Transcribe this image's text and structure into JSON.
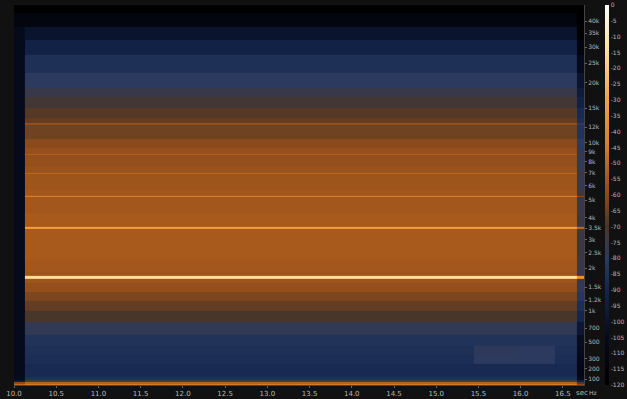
{
  "chart_data": {
    "type": "heatmap",
    "x_label": "sec",
    "y_label": "Hz",
    "x": [
      10.05,
      10.2,
      10.7,
      11.2,
      11.7,
      12.2,
      12.7,
      13.2,
      13.7,
      14.2,
      14.7,
      15.2,
      15.7,
      16.2,
      16.6,
      16.72
    ],
    "y": [
      50,
      70,
      85,
      100,
      150,
      200,
      300,
      400,
      500,
      700,
      900,
      1100,
      1300,
      1500,
      1690,
      1750,
      1810,
      2000,
      2500,
      3000,
      3400,
      3500,
      3600,
      4000,
      4500,
      5150,
      5250,
      5350,
      6000,
      6900,
      7000,
      7100,
      8000,
      8600,
      8750,
      8900,
      10000,
      11000,
      12300,
      12500,
      12700,
      14000,
      16000,
      18000,
      20000,
      25000,
      30000,
      35000,
      40000,
      48000
    ],
    "cells": [
      [
        -50,
        -45,
        -45,
        -45,
        -45,
        -45,
        -45,
        -45,
        -45,
        -45,
        -45,
        -45,
        -45,
        -45,
        -45,
        -60
      ],
      [
        -60,
        -52,
        -52,
        -52,
        -52,
        -52,
        -52,
        -52,
        -52,
        -52,
        -52,
        -52,
        -52,
        -52,
        -52,
        -70
      ],
      [
        -100,
        -75,
        -75,
        -75,
        -75,
        -75,
        -75,
        -75,
        -75,
        -75,
        -75,
        -75,
        -75,
        -75,
        -75,
        -95
      ],
      [
        -105,
        -85,
        -85,
        -85,
        -85,
        -85,
        -85,
        -85,
        -85,
        -85,
        -85,
        -85,
        -85,
        -85,
        -85,
        -105
      ],
      [
        -105,
        -88,
        -88,
        -88,
        -88,
        -88,
        -88,
        -88,
        -88,
        -88,
        -88,
        -88,
        -88,
        -88,
        -88,
        -108
      ],
      [
        -105,
        -88,
        -88,
        -88,
        -88,
        -88,
        -88,
        -88,
        -88,
        -88,
        -88,
        -88,
        -88,
        -88,
        -88,
        -108
      ],
      [
        -105,
        -86,
        -86,
        -86,
        -86,
        -86,
        -86,
        -86,
        -86,
        -86,
        -86,
        -86,
        -80,
        -80,
        -86,
        -106
      ],
      [
        -105,
        -85,
        -85,
        -85,
        -85,
        -85,
        -85,
        -85,
        -85,
        -85,
        -85,
        -85,
        -79,
        -80,
        -85,
        -105
      ],
      [
        -105,
        -84,
        -84,
        -84,
        -84,
        -84,
        -84,
        -84,
        -84,
        -84,
        -84,
        -84,
        -84,
        -84,
        -84,
        -104
      ],
      [
        -105,
        -78,
        -78,
        -78,
        -78,
        -78,
        -78,
        -78,
        -78,
        -78,
        -78,
        -78,
        -78,
        -78,
        -78,
        -98
      ],
      [
        -105,
        -70,
        -70,
        -70,
        -70,
        -70,
        -70,
        -70,
        -70,
        -70,
        -70,
        -70,
        -70,
        -70,
        -70,
        -90
      ],
      [
        -105,
        -66,
        -66,
        -66,
        -66,
        -66,
        -66,
        -66,
        -66,
        -66,
        -66,
        -66,
        -66,
        -66,
        -66,
        -86
      ],
      [
        -105,
        -62,
        -62,
        -62,
        -62,
        -62,
        -62,
        -62,
        -62,
        -62,
        -62,
        -62,
        -62,
        -62,
        -62,
        -82
      ],
      [
        -105,
        -58,
        -58,
        -58,
        -58,
        -58,
        -58,
        -58,
        -58,
        -58,
        -58,
        -58,
        -58,
        -58,
        -58,
        -78
      ],
      [
        -105,
        -56,
        -56,
        -56,
        -56,
        -56,
        -56,
        -56,
        -56,
        -56,
        -56,
        -56,
        -56,
        -56,
        -56,
        -76
      ],
      [
        -105,
        -15,
        -15,
        -15,
        -15,
        -15,
        -15,
        -15,
        -15,
        -15,
        -15,
        -15,
        -15,
        -15,
        -15,
        -35
      ],
      [
        -105,
        -56,
        -56,
        -56,
        -56,
        -56,
        -56,
        -56,
        -56,
        -56,
        -56,
        -56,
        -56,
        -56,
        -56,
        -76
      ],
      [
        -105,
        -55,
        -55,
        -55,
        -55,
        -55,
        -55,
        -55,
        -55,
        -55,
        -55,
        -55,
        -55,
        -55,
        -55,
        -75
      ],
      [
        -105,
        -54,
        -54,
        -54,
        -54,
        -54,
        -54,
        -54,
        -54,
        -54,
        -54,
        -54,
        -54,
        -54,
        -54,
        -74
      ],
      [
        -105,
        -54,
        -54,
        -54,
        -54,
        -54,
        -54,
        -54,
        -54,
        -54,
        -54,
        -54,
        -54,
        -54,
        -54,
        -74
      ],
      [
        -105,
        -54,
        -54,
        -54,
        -54,
        -54,
        -54,
        -54,
        -54,
        -54,
        -54,
        -54,
        -54,
        -54,
        -54,
        -74
      ],
      [
        -105,
        -30,
        -30,
        -30,
        -30,
        -30,
        -30,
        -30,
        -30,
        -30,
        -30,
        -30,
        -30,
        -30,
        -30,
        -50
      ],
      [
        -105,
        -54,
        -54,
        -54,
        -54,
        -54,
        -54,
        -54,
        -54,
        -54,
        -54,
        -54,
        -54,
        -54,
        -54,
        -74
      ],
      [
        -105,
        -54,
        -54,
        -54,
        -54,
        -54,
        -54,
        -54,
        -54,
        -54,
        -54,
        -54,
        -54,
        -54,
        -54,
        -74
      ],
      [
        -105,
        -55,
        -55,
        -55,
        -55,
        -55,
        -55,
        -55,
        -55,
        -55,
        -55,
        -55,
        -55,
        -55,
        -55,
        -75
      ],
      [
        -105,
        -55,
        -55,
        -55,
        -55,
        -55,
        -55,
        -55,
        -55,
        -55,
        -55,
        -55,
        -55,
        -55,
        -55,
        -75
      ],
      [
        -105,
        -40,
        -40,
        -40,
        -40,
        -40,
        -40,
        -40,
        -40,
        -40,
        -40,
        -40,
        -40,
        -40,
        -40,
        -60
      ],
      [
        -105,
        -55,
        -55,
        -55,
        -55,
        -55,
        -55,
        -55,
        -55,
        -55,
        -55,
        -55,
        -55,
        -55,
        -55,
        -75
      ],
      [
        -105,
        -56,
        -56,
        -56,
        -56,
        -56,
        -56,
        -56,
        -56,
        -56,
        -56,
        -56,
        -56,
        -56,
        -56,
        -76
      ],
      [
        -105,
        -56,
        -56,
        -56,
        -56,
        -56,
        -56,
        -56,
        -56,
        -56,
        -56,
        -56,
        -56,
        -56,
        -56,
        -76
      ],
      [
        -105,
        -50,
        -50,
        -50,
        -50,
        -50,
        -50,
        -50,
        -50,
        -50,
        -50,
        -50,
        -50,
        -50,
        -50,
        -70
      ],
      [
        -105,
        -57,
        -57,
        -57,
        -57,
        -57,
        -57,
        -57,
        -57,
        -57,
        -57,
        -57,
        -57,
        -57,
        -57,
        -77
      ],
      [
        -105,
        -58,
        -58,
        -58,
        -58,
        -58,
        -58,
        -58,
        -58,
        -58,
        -58,
        -58,
        -58,
        -58,
        -58,
        -78
      ],
      [
        -105,
        -58,
        -58,
        -58,
        -58,
        -58,
        -58,
        -58,
        -58,
        -58,
        -58,
        -58,
        -58,
        -58,
        -58,
        -78
      ],
      [
        -105,
        -52,
        -52,
        -52,
        -52,
        -52,
        -52,
        -52,
        -52,
        -52,
        -52,
        -52,
        -52,
        -52,
        -52,
        -72
      ],
      [
        -105,
        -58,
        -58,
        -58,
        -58,
        -58,
        -58,
        -58,
        -58,
        -58,
        -58,
        -58,
        -58,
        -58,
        -58,
        -78
      ],
      [
        -105,
        -60,
        -60,
        -60,
        -60,
        -60,
        -60,
        -60,
        -60,
        -60,
        -60,
        -60,
        -60,
        -60,
        -60,
        -80
      ],
      [
        -105,
        -64,
        -64,
        -64,
        -64,
        -64,
        -64,
        -64,
        -64,
        -64,
        -64,
        -64,
        -64,
        -64,
        -64,
        -84
      ],
      [
        -105,
        -64,
        -64,
        -64,
        -64,
        -64,
        -64,
        -64,
        -64,
        -64,
        -64,
        -64,
        -64,
        -64,
        -64,
        -84
      ],
      [
        -105,
        -58,
        -58,
        -58,
        -58,
        -58,
        -58,
        -58,
        -58,
        -58,
        -58,
        -58,
        -58,
        -58,
        -58,
        -78
      ],
      [
        -105,
        -66,
        -66,
        -66,
        -66,
        -66,
        -66,
        -66,
        -66,
        -66,
        -66,
        -66,
        -66,
        -66,
        -66,
        -86
      ],
      [
        -105,
        -68,
        -68,
        -68,
        -68,
        -68,
        -68,
        -68,
        -68,
        -68,
        -68,
        -68,
        -68,
        -68,
        -68,
        -88
      ],
      [
        -105,
        -72,
        -72,
        -72,
        -72,
        -72,
        -72,
        -72,
        -72,
        -72,
        -72,
        -72,
        -72,
        -72,
        -72,
        -92
      ],
      [
        -105,
        -76,
        -76,
        -76,
        -76,
        -76,
        -76,
        -76,
        -76,
        -76,
        -76,
        -76,
        -76,
        -76,
        -76,
        -96
      ],
      [
        -105,
        -80,
        -80,
        -80,
        -80,
        -80,
        -80,
        -80,
        -80,
        -80,
        -80,
        -80,
        -80,
        -80,
        -80,
        -100
      ],
      [
        -105,
        -85,
        -85,
        -85,
        -85,
        -85,
        -85,
        -85,
        -85,
        -85,
        -85,
        -85,
        -85,
        -85,
        -85,
        -105
      ],
      [
        -105,
        -92,
        -92,
        -92,
        -92,
        -92,
        -92,
        -92,
        -92,
        -92,
        -92,
        -92,
        -92,
        -92,
        -92,
        -112
      ],
      [
        -105,
        -100,
        -100,
        -100,
        -100,
        -100,
        -100,
        -100,
        -100,
        -100,
        -100,
        -100,
        -100,
        -100,
        -100,
        -120
      ],
      [
        -112,
        -112,
        -112,
        -112,
        -112,
        -112,
        -112,
        -112,
        -112,
        -112,
        -112,
        -112,
        -112,
        -112,
        -112,
        -120
      ],
      [
        -120,
        -120,
        -120,
        -120,
        -120,
        -120,
        -120,
        -120,
        -120,
        -120,
        -120,
        -120,
        -120,
        -120,
        -120,
        -120
      ]
    ],
    "xlim": [
      10.0,
      16.75
    ],
    "xticks": [
      {
        "value": 10,
        "label": "10.0"
      },
      10.5,
      {
        "value": 11,
        "label": "11.0"
      },
      11.5,
      {
        "value": 12,
        "label": "12.0"
      },
      12.5,
      {
        "value": 13,
        "label": "13.0"
      },
      13.5,
      {
        "value": 14,
        "label": "14.0"
      },
      14.5,
      {
        "value": 15,
        "label": "15.0"
      },
      15.5,
      {
        "value": 16,
        "label": "16.0"
      },
      16.5
    ],
    "ylim": [
      50,
      48000
    ],
    "yticks": [
      100,
      200,
      300,
      500,
      700,
      {
        "value": 1000,
        "label": "1k"
      },
      {
        "value": 1200,
        "label": "1.2k"
      },
      {
        "value": 1500,
        "label": "1.5k"
      },
      {
        "value": 2000,
        "label": "2k"
      },
      {
        "value": 2500,
        "label": "2.5k"
      },
      {
        "value": 3000,
        "label": "3k"
      },
      {
        "value": 3500,
        "label": "3.5k"
      },
      {
        "value": 4000,
        "label": "4k"
      },
      {
        "value": 5000,
        "label": "5k"
      },
      {
        "value": 6000,
        "label": "6k"
      },
      {
        "value": 7000,
        "label": "7k"
      },
      {
        "value": 8000,
        "label": "8k"
      },
      {
        "value": 9000,
        "label": "9k"
      },
      {
        "value": 10000,
        "label": "10k"
      },
      {
        "value": 12000,
        "label": "12k"
      },
      {
        "value": 15000,
        "label": "15k"
      },
      {
        "value": 20000,
        "label": "20k"
      },
      {
        "value": 25000,
        "label": "25k"
      },
      {
        "value": 30000,
        "label": "30k"
      },
      {
        "value": 35000,
        "label": "35k"
      },
      {
        "value": 40000,
        "label": "40k"
      }
    ],
    "colorbar_range": [
      -120,
      0
    ],
    "colorbar_ticks": [
      -120,
      -115,
      -110,
      -105,
      -100,
      -95,
      -90,
      -85,
      -80,
      -75,
      -70,
      -65,
      -60,
      -55,
      -50,
      -45,
      -40,
      -35,
      -30,
      -25,
      -20,
      -15,
      -10,
      -5,
      0
    ],
    "grid": false
  }
}
